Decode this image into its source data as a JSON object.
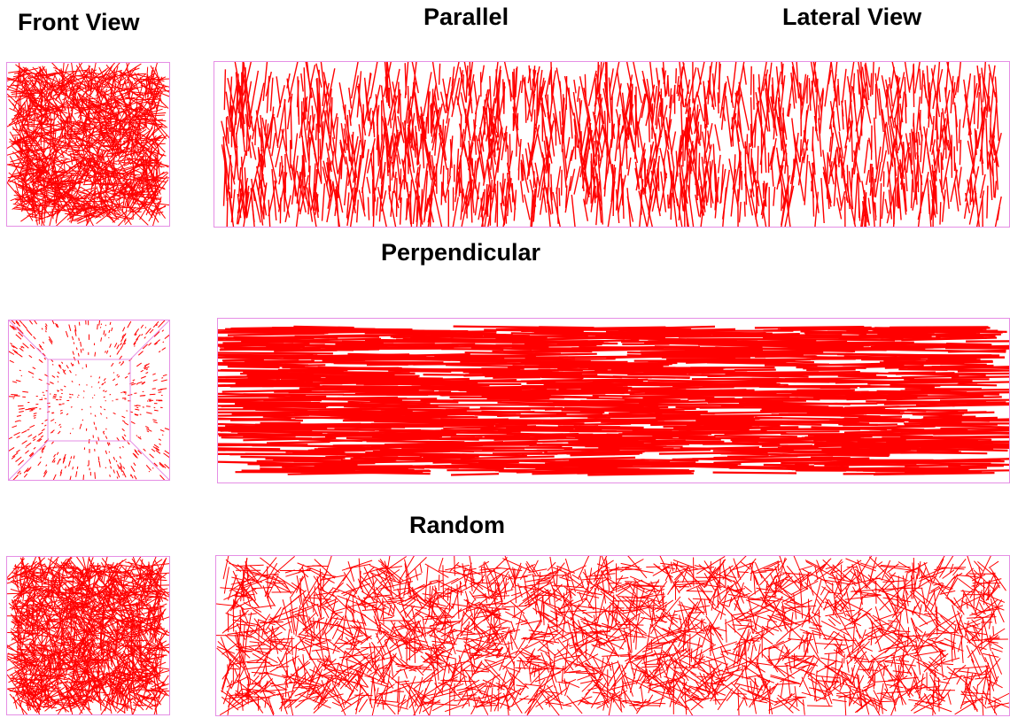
{
  "headers": {
    "front_view": "Front View",
    "lateral_view": "Lateral View"
  },
  "orientations": [
    {
      "key": "parallel",
      "title": "Parallel"
    },
    {
      "key": "perpendicular",
      "title": "Perpendicular"
    },
    {
      "key": "random",
      "title": "Random"
    }
  ],
  "colors": {
    "fiber": "#ff0000",
    "box": "#e58ee5",
    "background": "#ffffff"
  }
}
